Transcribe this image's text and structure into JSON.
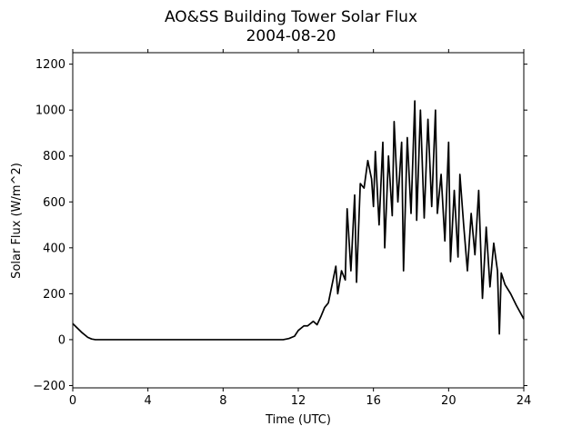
{
  "chart_data": {
    "type": "line",
    "title": "AO&SS Building Tower Solar Flux",
    "subtitle": "2004-08-20",
    "x_label": "Time (UTC)",
    "y_label": "Solar Flux (W/m^2)",
    "color": "#000000",
    "x": [
      0,
      0.5,
      0.8,
      1,
      1.2,
      11.2,
      11.5,
      11.8,
      12,
      12.3,
      12.5,
      12.8,
      13,
      13.2,
      13.4,
      13.6,
      13.8,
      14,
      14.1,
      14.3,
      14.5,
      14.6,
      14.8,
      15,
      15.1,
      15.3,
      15.5,
      15.7,
      15.9,
      16,
      16.1,
      16.3,
      16.5,
      16.6,
      16.8,
      17,
      17.1,
      17.3,
      17.5,
      17.6,
      17.8,
      18,
      18.2,
      18.3,
      18.5,
      18.7,
      18.9,
      19.1,
      19.3,
      19.4,
      19.6,
      19.8,
      20,
      20.1,
      20.3,
      20.5,
      20.6,
      20.8,
      21,
      21.2,
      21.4,
      21.6,
      21.8,
      22,
      22.2,
      22.4,
      22.6,
      22.7,
      22.8,
      23,
      23.3,
      23.6,
      24
    ],
    "values": [
      70,
      30,
      10,
      3,
      0,
      0,
      5,
      15,
      40,
      60,
      60,
      80,
      65,
      100,
      140,
      160,
      240,
      320,
      200,
      300,
      260,
      570,
      300,
      630,
      250,
      680,
      660,
      780,
      700,
      580,
      820,
      500,
      860,
      400,
      800,
      540,
      950,
      600,
      860,
      300,
      880,
      550,
      1040,
      520,
      1000,
      530,
      960,
      580,
      1000,
      550,
      720,
      430,
      860,
      340,
      650,
      360,
      720,
      500,
      300,
      550,
      370,
      650,
      180,
      490,
      230,
      420,
      300,
      25,
      290,
      240,
      200,
      150,
      90
    ],
    "xlim": [
      0,
      24
    ],
    "xticks": [
      0,
      4,
      8,
      12,
      16,
      20,
      24
    ],
    "ylim": [
      -210,
      1250
    ],
    "yticks": [
      {
        "value": -200,
        "label": "−200"
      },
      0,
      200,
      400,
      600,
      800,
      1000,
      1200
    ]
  }
}
